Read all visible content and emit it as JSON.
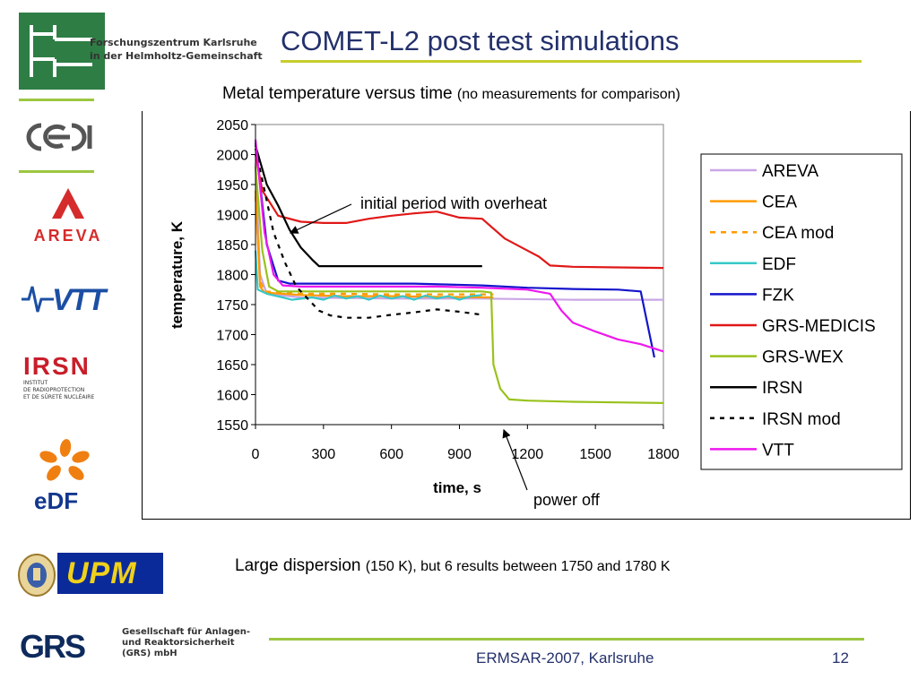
{
  "header": {
    "org_line1": "Forschungszentrum Karlsruhe",
    "org_line2": "in der Helmholtz-Gemeinschaft",
    "title": "COMET-L2 post test simulations"
  },
  "logos": {
    "cea": "cea",
    "areva": "AREVA",
    "vtt": "VTT",
    "irsn": "IRSN",
    "irsn_sub1": "INSTITUT",
    "irsn_sub2": "DE RADIOPROTECTION",
    "irsn_sub3": "ET DE SÛRETÉ NUCLÉAIRE",
    "edf": "eDF",
    "upm": "UPM",
    "grs": "GRS"
  },
  "subtitle": {
    "main": "Metal temperature versus time",
    "note": "(no measurements for comparison)"
  },
  "chart_data": {
    "type": "line",
    "title": "",
    "xlabel": "time, s",
    "ylabel": "temperature, K",
    "xlim": [
      0,
      1800
    ],
    "ylim": [
      1550,
      2050
    ],
    "xticks": [
      0,
      300,
      600,
      900,
      1200,
      1500,
      1800
    ],
    "yticks": [
      1550,
      1600,
      1650,
      1700,
      1750,
      1800,
      1850,
      1900,
      1950,
      2000,
      2050
    ],
    "grid": false,
    "legend_position": "right",
    "series": [
      {
        "name": "AREVA",
        "color": "#c9a6e6",
        "dash": "",
        "points": [
          [
            0,
            1985
          ],
          [
            20,
            1800
          ],
          [
            50,
            1768
          ],
          [
            200,
            1762
          ],
          [
            600,
            1760
          ],
          [
            1000,
            1760
          ],
          [
            1400,
            1758
          ],
          [
            1800,
            1758
          ]
        ]
      },
      {
        "name": "CEA",
        "color": "#ff9a00",
        "dash": "",
        "points": [
          [
            0,
            1940
          ],
          [
            20,
            1780
          ],
          [
            40,
            1770
          ],
          [
            200,
            1766
          ],
          [
            400,
            1764
          ],
          [
            600,
            1764
          ],
          [
            800,
            1763
          ],
          [
            1050,
            1762
          ]
        ]
      },
      {
        "name": "CEA mod",
        "color": "#ff9a00",
        "dash": "6,6",
        "points": [
          [
            0,
            1930
          ],
          [
            20,
            1790
          ],
          [
            40,
            1772
          ],
          [
            200,
            1768
          ],
          [
            400,
            1768
          ],
          [
            600,
            1767
          ],
          [
            800,
            1767
          ],
          [
            1050,
            1767
          ]
        ]
      },
      {
        "name": "EDF",
        "color": "#38c8c8",
        "dash": "",
        "points": [
          [
            0,
            1840
          ],
          [
            10,
            1775
          ],
          [
            50,
            1768
          ],
          [
            120,
            1762
          ],
          [
            160,
            1758
          ],
          [
            250,
            1762
          ],
          [
            300,
            1758
          ],
          [
            350,
            1765
          ],
          [
            400,
            1760
          ],
          [
            450,
            1764
          ],
          [
            500,
            1758
          ],
          [
            550,
            1765
          ],
          [
            600,
            1760
          ],
          [
            650,
            1764
          ],
          [
            700,
            1758
          ],
          [
            750,
            1765
          ],
          [
            800,
            1760
          ],
          [
            850,
            1764
          ],
          [
            900,
            1758
          ],
          [
            950,
            1764
          ],
          [
            1000,
            1766
          ]
        ]
      },
      {
        "name": "FZK",
        "color": "#1414cc",
        "dash": "",
        "points": [
          [
            0,
            2020
          ],
          [
            50,
            1850
          ],
          [
            100,
            1790
          ],
          [
            150,
            1785
          ],
          [
            200,
            1785
          ],
          [
            400,
            1785
          ],
          [
            700,
            1785
          ],
          [
            1000,
            1782
          ],
          [
            1200,
            1778
          ],
          [
            1400,
            1776
          ],
          [
            1600,
            1775
          ],
          [
            1700,
            1772
          ],
          [
            1760,
            1662
          ]
        ]
      },
      {
        "name": "GRS-MEDICIS",
        "color": "#e01818",
        "dash": "",
        "points": [
          [
            0,
            2000
          ],
          [
            30,
            1940
          ],
          [
            100,
            1898
          ],
          [
            200,
            1888
          ],
          [
            300,
            1886
          ],
          [
            400,
            1886
          ],
          [
            500,
            1893
          ],
          [
            600,
            1898
          ],
          [
            700,
            1902
          ],
          [
            800,
            1905
          ],
          [
            900,
            1895
          ],
          [
            1000,
            1893
          ],
          [
            1100,
            1860
          ],
          [
            1200,
            1840
          ],
          [
            1250,
            1830
          ],
          [
            1300,
            1815
          ],
          [
            1400,
            1813
          ],
          [
            1600,
            1812
          ],
          [
            1800,
            1811
          ]
        ]
      },
      {
        "name": "GRS-WEX",
        "color": "#99c21c",
        "dash": "",
        "points": [
          [
            0,
            1980
          ],
          [
            30,
            1840
          ],
          [
            60,
            1780
          ],
          [
            100,
            1772
          ],
          [
            200,
            1772
          ],
          [
            400,
            1772
          ],
          [
            600,
            1772
          ],
          [
            800,
            1772
          ],
          [
            1000,
            1772
          ],
          [
            1040,
            1770
          ],
          [
            1050,
            1650
          ],
          [
            1080,
            1610
          ],
          [
            1120,
            1592
          ],
          [
            1200,
            1590
          ],
          [
            1400,
            1588
          ],
          [
            1600,
            1587
          ],
          [
            1800,
            1586
          ]
        ]
      },
      {
        "name": "IRSN",
        "color": "#000000",
        "dash": "",
        "points": [
          [
            0,
            2015
          ],
          [
            50,
            1950
          ],
          [
            100,
            1915
          ],
          [
            150,
            1875
          ],
          [
            200,
            1845
          ],
          [
            250,
            1825
          ],
          [
            280,
            1814
          ],
          [
            400,
            1814
          ],
          [
            600,
            1814
          ],
          [
            800,
            1814
          ],
          [
            1000,
            1814
          ]
        ]
      },
      {
        "name": "IRSN mod",
        "color": "#000000",
        "dash": "5,6",
        "points": [
          [
            0,
            2010
          ],
          [
            40,
            1940
          ],
          [
            80,
            1870
          ],
          [
            130,
            1820
          ],
          [
            180,
            1780
          ],
          [
            230,
            1760
          ],
          [
            280,
            1740
          ],
          [
            330,
            1732
          ],
          [
            400,
            1728
          ],
          [
            500,
            1728
          ],
          [
            600,
            1733
          ],
          [
            700,
            1737
          ],
          [
            800,
            1742
          ],
          [
            900,
            1738
          ],
          [
            1000,
            1733
          ]
        ]
      },
      {
        "name": "VTT",
        "color": "#ee18ee",
        "dash": "",
        "points": [
          [
            0,
            2025
          ],
          [
            40,
            1870
          ],
          [
            80,
            1800
          ],
          [
            120,
            1782
          ],
          [
            200,
            1780
          ],
          [
            400,
            1780
          ],
          [
            600,
            1780
          ],
          [
            800,
            1780
          ],
          [
            1000,
            1778
          ],
          [
            1200,
            1775
          ],
          [
            1300,
            1768
          ],
          [
            1350,
            1740
          ],
          [
            1400,
            1720
          ],
          [
            1500,
            1705
          ],
          [
            1600,
            1692
          ],
          [
            1700,
            1684
          ],
          [
            1800,
            1672
          ]
        ]
      }
    ],
    "annotations": [
      {
        "text": "initial period with overheat",
        "at": [
          150,
          1900
        ]
      },
      {
        "text": "power off",
        "at": [
          1100,
          1548
        ]
      }
    ]
  },
  "dispersion": {
    "main": "Large dispersion",
    "note": "(150 K), but 6 results between 1750 and 1780 K"
  },
  "footer": {
    "grs_line1": "Gesellschaft für Anlagen-",
    "grs_line2": "und Reaktorsicherheit",
    "grs_line3": "(GRS) mbH",
    "event": "ERMSAR-2007, Karlsruhe",
    "page": "12"
  }
}
